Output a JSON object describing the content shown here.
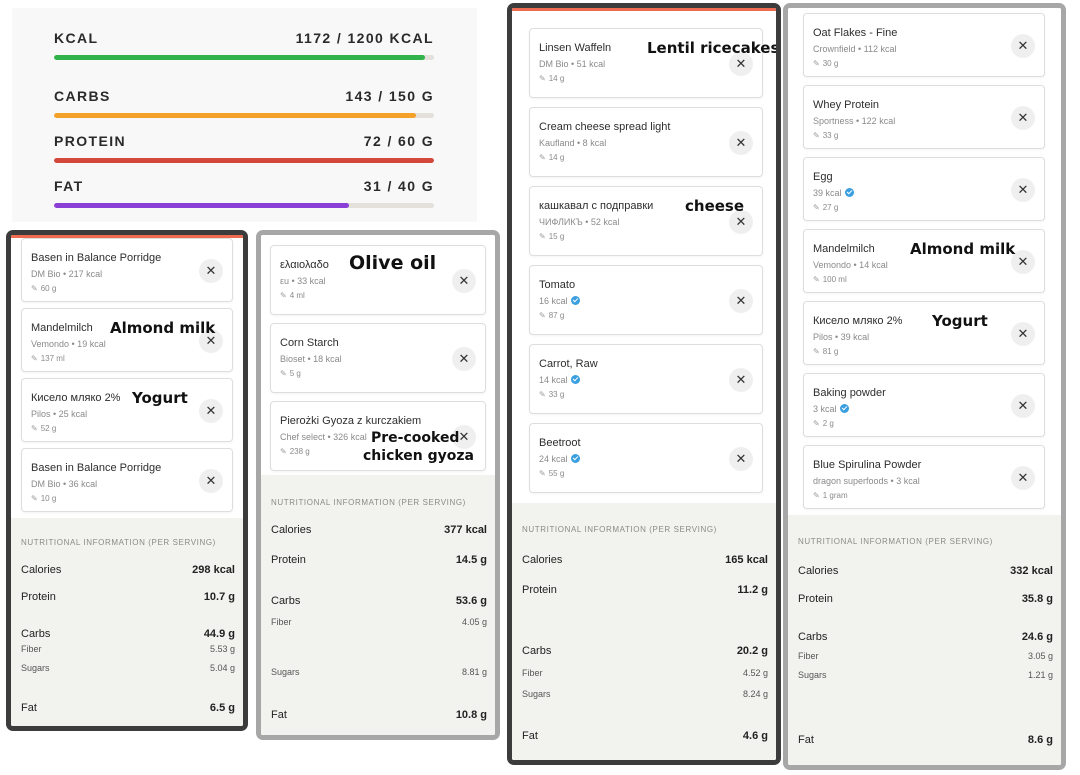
{
  "macros": [
    {
      "label": "KCAL",
      "value": "1172 / 1200 KCAL",
      "fraction": 0.977,
      "color": "#2fb34a"
    },
    {
      "label": "CARBS",
      "value": "143 / 150 G",
      "fraction": 0.953,
      "color": "#f4a12a"
    },
    {
      "label": "PROTEIN",
      "value": "72 / 60 G",
      "fraction": 1.0,
      "color": "#d4483c"
    },
    {
      "label": "FAT",
      "value": "31 / 40 G",
      "fraction": 0.775,
      "color": "#8a3fd6"
    }
  ],
  "panels": [
    {
      "items": [
        {
          "name": "Basen in Balance Porridge",
          "sub": "DM Bio • 217 kcal",
          "serving": "60 g"
        },
        {
          "name": "Mandelmilch",
          "sub": "Vemondo • 19 kcal",
          "serving": "137 ml",
          "annotation": "Almond milk"
        },
        {
          "name": "Кисело мляко  2%",
          "sub": "Pilos • 25 kcal",
          "serving": "52 g",
          "annotation": "Yogurt"
        },
        {
          "name": "Basen in Balance Porridge",
          "sub": "DM Bio • 36 kcal",
          "serving": "10 g"
        }
      ],
      "nutrition": {
        "title": "NUTRITIONAL INFORMATION (PER SERVING)",
        "rows": [
          {
            "label": "Calories",
            "value": "298 kcal"
          },
          {
            "label": "Protein",
            "value": "10.7 g"
          },
          {
            "label": "Carbs",
            "value": "44.9 g"
          },
          {
            "label": "Fiber",
            "value": "5.53 g"
          },
          {
            "label": "Sugars",
            "value": "5.04 g"
          },
          {
            "label": "Fat",
            "value": "6.5 g"
          }
        ]
      }
    },
    {
      "items": [
        {
          "name": "ελαιολαδο",
          "sub": "εu • 33 kcal",
          "serving": "4 ml",
          "annotation": "Olive oil"
        },
        {
          "name": "Corn Starch",
          "sub": "Bioset • 18 kcal",
          "serving": "5 g"
        },
        {
          "name": "Pierożki Gyoza z kurczakiem",
          "sub": "Chef select • 326 kcal",
          "serving": "238 g",
          "annotation": "Pre-cooked",
          "annotation2": "chicken gyoza"
        }
      ],
      "nutrition": {
        "title": "NUTRITIONAL INFORMATION (PER SERVING)",
        "rows": [
          {
            "label": "Calories",
            "value": "377 kcal"
          },
          {
            "label": "Protein",
            "value": "14.5 g"
          },
          {
            "label": "Carbs",
            "value": "53.6 g"
          },
          {
            "label": "Fiber",
            "value": "4.05 g"
          },
          {
            "label": "Sugars",
            "value": "8.81 g"
          },
          {
            "label": "Fat",
            "value": "10.8 g"
          }
        ]
      }
    },
    {
      "items": [
        {
          "name": "Linsen  Waffeln",
          "sub": "DM Bio • 51 kcal",
          "serving": "14 g",
          "annotation": "Lentil ricecakes"
        },
        {
          "name": "Cream cheese spread light",
          "sub": "Kaufland • 8 kcal",
          "serving": "14 g"
        },
        {
          "name": "кашкавал с подправки",
          "sub": "ЧИФЛИКЪ • 52 kcal",
          "serving": "15 g",
          "annotation": "cheese"
        },
        {
          "name": "Tomato",
          "sub": "16 kcal",
          "serving": "87 g",
          "verified": true
        },
        {
          "name": "Carrot, Raw",
          "sub": "14 kcal",
          "serving": "33 g",
          "verified": true
        },
        {
          "name": "Beetroot",
          "sub": "24 kcal",
          "serving": "55 g",
          "verified": true
        }
      ],
      "nutrition": {
        "title": "NUTRITIONAL INFORMATION (PER SERVING)",
        "rows": [
          {
            "label": "Calories",
            "value": "165 kcal"
          },
          {
            "label": "Protein",
            "value": "11.2 g"
          },
          {
            "label": "Carbs",
            "value": "20.2 g"
          },
          {
            "label": "Fiber",
            "value": "4.52 g"
          },
          {
            "label": "Sugars",
            "value": "8.24 g"
          },
          {
            "label": "Fat",
            "value": "4.6 g"
          }
        ]
      }
    },
    {
      "items": [
        {
          "name": "Oat Flakes - Fine",
          "sub": "Crownfield • 112 kcal",
          "serving": "30 g"
        },
        {
          "name": "Whey Protein",
          "sub": "Sportness • 122 kcal",
          "serving": "33 g"
        },
        {
          "name": "Egg",
          "sub": "39 kcal",
          "serving": "27 g",
          "verified": true
        },
        {
          "name": "Mandelmilch",
          "sub": "Vemondo • 14 kcal",
          "serving": "100 ml",
          "annotation": "Almond milk"
        },
        {
          "name": "Кисело мляко  2%",
          "sub": "Pilos • 39 kcal",
          "serving": "81 g",
          "annotation": "Yogurt"
        },
        {
          "name": "Baking powder",
          "sub": "3 kcal",
          "serving": "2 g",
          "verified": true
        },
        {
          "name": "Blue Spirulina Powder",
          "sub": "dragon superfoods • 3 kcal",
          "serving": "1 gram"
        }
      ],
      "nutrition": {
        "title": "NUTRITIONAL INFORMATION (PER SERVING)",
        "rows": [
          {
            "label": "Calories",
            "value": "332 kcal"
          },
          {
            "label": "Protein",
            "value": "35.8 g"
          },
          {
            "label": "Carbs",
            "value": "24.6 g"
          },
          {
            "label": "Fiber",
            "value": "3.05 g"
          },
          {
            "label": "Sugars",
            "value": "1.21 g"
          },
          {
            "label": "Fat",
            "value": "8.6 g"
          }
        ]
      }
    }
  ],
  "icons": {
    "remove": "close-icon",
    "serving": "pencil-icon",
    "verified": "verified-check-icon"
  },
  "symbols": {
    "remove": "✕",
    "pencil": "✎"
  }
}
